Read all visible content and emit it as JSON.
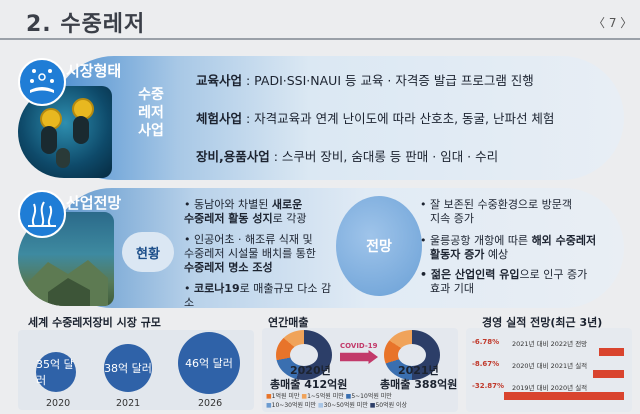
{
  "header": {
    "title": "2. 수중레저",
    "page_number": "〈 7 〉"
  },
  "section1": {
    "label": "시장형태",
    "icon": "network-hand-icon",
    "vertical_label": [
      "수중",
      "레저",
      "사업"
    ],
    "rows": [
      {
        "head": "교육사업",
        "text": " : PADI·SSI·NAUI 등 교육 · 자격증 발급 프로그램 진행"
      },
      {
        "head": "체험사업",
        "text": " : 자격교육과 연계 난이도에 따라 산호초, 동굴, 난파선 체험"
      },
      {
        "head": "장비,용품사업",
        "text": " : 스쿠버 장비, 숨대롱 등 판매 · 임대 · 수리"
      }
    ]
  },
  "section2": {
    "label": "산업전망",
    "icon": "seaweed-icon",
    "left_label": "현황",
    "right_label": "전망",
    "current": [
      {
        "pre": "• 동남아와 차별된 ",
        "bold": "새로운",
        "line2_bold": "수중레저 활동 성지",
        "line2_post": "로 각광"
      },
      {
        "pre": "• 인공어초 · 해조류 식재 및",
        "line2": "수중레저 시설물 배치를 통한",
        "line3_bold": "수중레저 명소 조성"
      },
      {
        "pre": "• ",
        "bold": "코로나19",
        "post": "로 매출규모 다소 감소"
      }
    ],
    "outlook": [
      {
        "l1": "• 잘 보존된 수중환경으로 방문객",
        "l2": "지속 증가"
      },
      {
        "l1_pre": "• 울릉공항 개항에 따른 ",
        "l1_bold": "해외 수중레저",
        "l2_bold": "활동자 증가",
        "l2_post": " 예상"
      },
      {
        "l1_bold": "• 젊은 산업인력 유입",
        "l1_post": "으로 인구 증가",
        "l2": "효과 기대"
      }
    ]
  },
  "market": {
    "title": "세계 수중레저장비 시장 규모",
    "bubbles": [
      {
        "value": "35억 달러",
        "year": "2020"
      },
      {
        "value": "38억 달러",
        "year": "2021"
      },
      {
        "value": "46억 달러",
        "year": "2026"
      }
    ]
  },
  "sales": {
    "title": "연간매출",
    "arrow": "COVID-19",
    "d1": {
      "year": "2020년",
      "total": "총매출 412억원"
    },
    "d2": {
      "year": "2021년",
      "total": "총매출 388억원"
    },
    "legend": [
      "1억원 미만",
      "1~5억원 미만",
      "5~10억원 미만",
      "10~30억원 미만",
      "30~50억원 미만",
      "50억원 이상"
    ],
    "colors": [
      "#e8742a",
      "#f0a35a",
      "#3a6fb0",
      "#6b9bd0",
      "#a9c6e6",
      "#2c3e68"
    ]
  },
  "outlook_chart": {
    "title": "경영 실적 전망(최근 3년)",
    "rows": [
      {
        "pct": "-6.78%",
        "label": "2021년 대비 2022년 전망",
        "fill": 0.21
      },
      {
        "pct": "-8.67%",
        "label": "2020년 대비 2021년 실적",
        "fill": 0.26
      },
      {
        "pct": "-32.87%",
        "label": "2019년 대비 2020년 실적",
        "fill": 1.0
      }
    ],
    "bar_color": "#d9442e"
  }
}
